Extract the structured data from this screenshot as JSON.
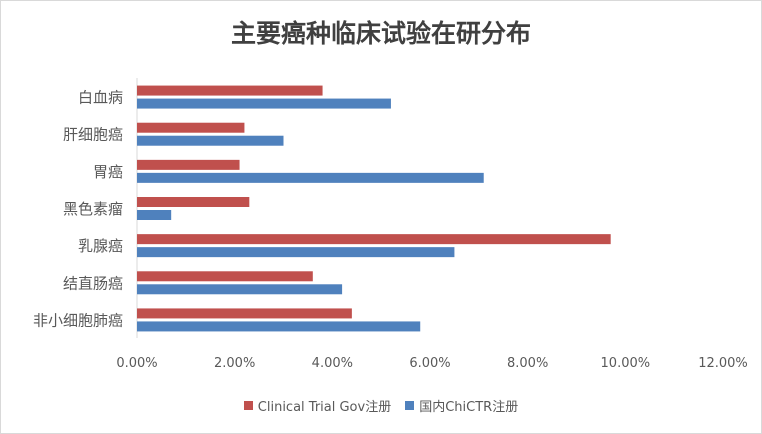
{
  "chart_data": {
    "type": "bar",
    "orientation": "horizontal",
    "title": "主要癌种临床试验在研分布",
    "categories": [
      "白血病",
      "肝细胞癌",
      "胃癌",
      "黑色素瘤",
      "乳腺癌",
      "结直肠癌",
      "非小细胞肺癌"
    ],
    "series": [
      {
        "name": "Clinical Trial Gov注册",
        "color": "#c0504d",
        "values": [
          3.8,
          2.2,
          2.1,
          2.3,
          9.7,
          3.6,
          4.4
        ]
      },
      {
        "name": "国内ChiCTR注册",
        "color": "#4f81bd",
        "values": [
          5.2,
          3.0,
          7.1,
          0.7,
          6.5,
          4.2,
          5.8
        ]
      }
    ],
    "xlim": [
      0,
      12
    ],
    "xticks": [
      "0.00%",
      "2.00%",
      "4.00%",
      "6.00%",
      "8.00%",
      "10.00%",
      "12.00%"
    ],
    "xlabel": "",
    "ylabel": "",
    "grid": false,
    "legend": "bottom"
  }
}
